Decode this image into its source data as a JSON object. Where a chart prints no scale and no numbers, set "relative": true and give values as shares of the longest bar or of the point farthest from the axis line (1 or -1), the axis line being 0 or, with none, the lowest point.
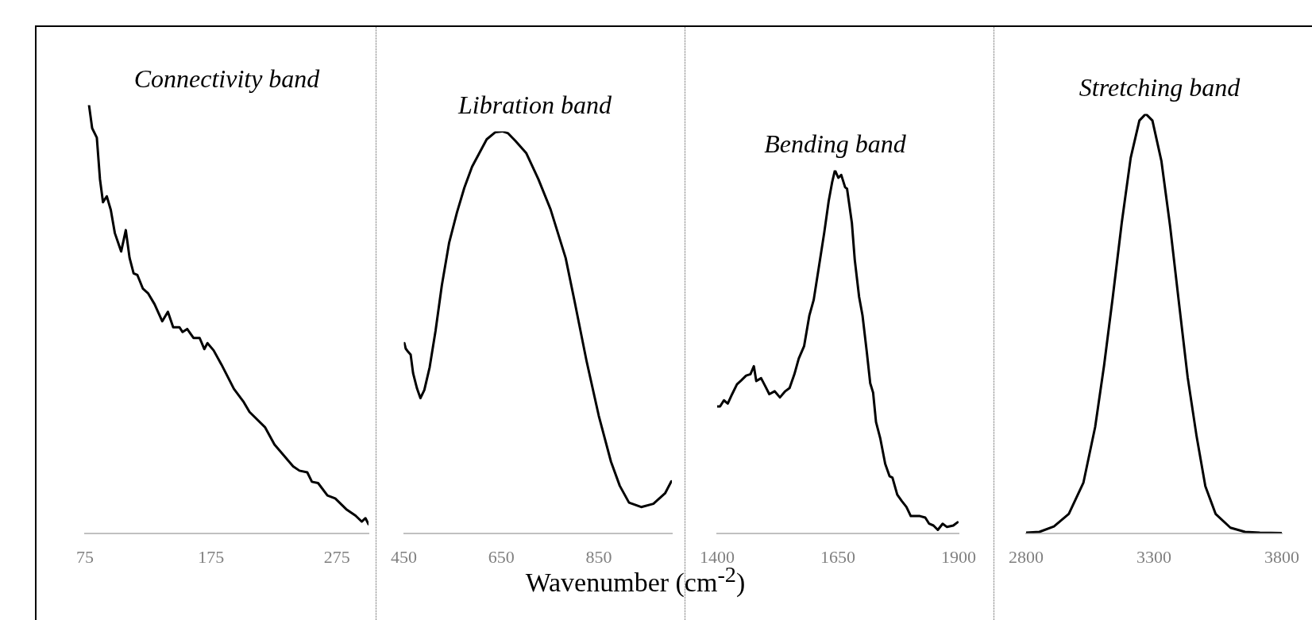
{
  "chart_data": [
    {
      "type": "line",
      "title": "Connectivity band",
      "relative": true,
      "marker": "none",
      "color": "#000000",
      "xlim": [
        75,
        300
      ],
      "xticks": [
        75,
        175,
        275
      ],
      "x": [
        78.2,
        80.7,
        84.4,
        86.9,
        89.3,
        92.3,
        95.5,
        98.7,
        103.7,
        107.4,
        110.4,
        113.6,
        116.6,
        121,
        125.2,
        130.2,
        136.3,
        140.8,
        145,
        150,
        152.4,
        156.1,
        161.1,
        166,
        169.7,
        172.2,
        177.1,
        183.3,
        193.2,
        200.6,
        205.6,
        218,
        225.4,
        240.2,
        245.2,
        251.4,
        255.1,
        260,
        267.4,
        273.6,
        282.3,
        289.7,
        294.6,
        297.6,
        300
      ],
      "values": [
        1.0,
        0.946,
        0.924,
        0.827,
        0.773,
        0.787,
        0.755,
        0.701,
        0.658,
        0.708,
        0.643,
        0.607,
        0.603,
        0.571,
        0.56,
        0.535,
        0.495,
        0.517,
        0.481,
        0.481,
        0.47,
        0.477,
        0.456,
        0.456,
        0.43,
        0.444,
        0.427,
        0.394,
        0.337,
        0.308,
        0.283,
        0.247,
        0.207,
        0.156,
        0.146,
        0.142,
        0.12,
        0.117,
        0.088,
        0.081,
        0.056,
        0.041,
        0.027,
        0.035,
        0.021
      ]
    },
    {
      "type": "line",
      "title": "Libration band",
      "xlabel": "Wavenumber (cm$^{-2}$)",
      "relative": true,
      "marker": "none",
      "color": "#000000",
      "xlim": [
        450,
        1000
      ],
      "xticks": [
        450,
        650,
        850
      ],
      "x": [
        451,
        454,
        459,
        464,
        469,
        477,
        484,
        492,
        503,
        515,
        528,
        543,
        559,
        574,
        590,
        605,
        620,
        638,
        652,
        664,
        679,
        701,
        726,
        751,
        782,
        800,
        825,
        850,
        875,
        893,
        912,
        937,
        962,
        986,
        999
      ],
      "values": [
        0.473,
        0.459,
        0.451,
        0.444,
        0.398,
        0.36,
        0.336,
        0.356,
        0.413,
        0.503,
        0.617,
        0.723,
        0.798,
        0.859,
        0.912,
        0.946,
        0.98,
        0.998,
        1.0,
        0.995,
        0.976,
        0.946,
        0.881,
        0.806,
        0.685,
        0.579,
        0.428,
        0.292,
        0.178,
        0.118,
        0.076,
        0.065,
        0.073,
        0.099,
        0.129
      ]
    },
    {
      "type": "line",
      "title": "Bending band",
      "relative": true,
      "marker": "none",
      "color": "#000000",
      "xlim": [
        1400,
        1900
      ],
      "xticks": [
        1400,
        1650,
        1900
      ],
      "x": [
        1400,
        1406,
        1414,
        1422,
        1431,
        1441,
        1450,
        1460,
        1469,
        1476,
        1481,
        1491,
        1500,
        1508,
        1519,
        1530,
        1541,
        1550,
        1560,
        1569,
        1580,
        1591,
        1600,
        1613,
        1622,
        1631,
        1638,
        1644,
        1651,
        1657,
        1665,
        1669,
        1679,
        1685,
        1694,
        1701,
        1710,
        1717,
        1723,
        1729,
        1738,
        1748,
        1757,
        1763,
        1773,
        1782,
        1792,
        1801,
        1820,
        1831,
        1839,
        1848,
        1857,
        1867,
        1876,
        1889,
        1898
      ],
      "values": [
        0.349,
        0.349,
        0.366,
        0.357,
        0.383,
        0.41,
        0.421,
        0.434,
        0.438,
        0.46,
        0.419,
        0.427,
        0.404,
        0.383,
        0.391,
        0.374,
        0.391,
        0.4,
        0.438,
        0.481,
        0.515,
        0.6,
        0.643,
        0.753,
        0.83,
        0.915,
        0.966,
        1.0,
        0.979,
        0.987,
        0.953,
        0.949,
        0.855,
        0.753,
        0.651,
        0.6,
        0.498,
        0.413,
        0.387,
        0.306,
        0.26,
        0.191,
        0.157,
        0.153,
        0.106,
        0.089,
        0.072,
        0.047,
        0.047,
        0.043,
        0.026,
        0.021,
        0.009,
        0.026,
        0.017,
        0.021,
        0.03
      ]
    },
    {
      "type": "line",
      "title": "Stretching band",
      "relative": true,
      "marker": "none",
      "color": "#000000",
      "xlim": [
        2800,
        3800
      ],
      "xticks": [
        2800,
        3300,
        3800
      ],
      "x": [
        2800,
        2852,
        2909,
        2967,
        3024,
        3070,
        3105,
        3139,
        3174,
        3209,
        3243,
        3268,
        3294,
        3329,
        3363,
        3398,
        3432,
        3467,
        3501,
        3541,
        3599,
        3656,
        3714,
        3800
      ],
      "values": [
        0.001,
        0.003,
        0.016,
        0.046,
        0.12,
        0.253,
        0.4,
        0.563,
        0.74,
        0.895,
        0.984,
        1.0,
        0.984,
        0.888,
        0.733,
        0.548,
        0.371,
        0.23,
        0.112,
        0.046,
        0.013,
        0.003,
        0.001,
        0
      ]
    }
  ]
}
